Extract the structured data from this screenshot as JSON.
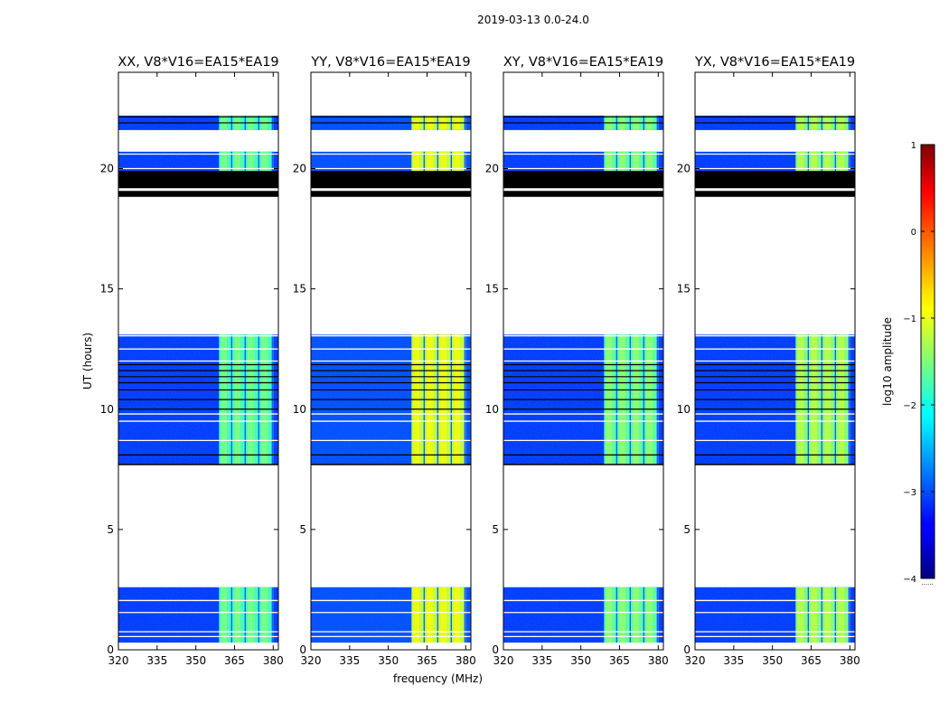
{
  "figure": {
    "suptitle": "2019-03-13 0.0-24.0"
  },
  "chart_data": [
    {
      "type": "heatmap",
      "title": "XX, V8*V16=EA15*EA19",
      "xlabel": "",
      "ylabel": "UT (hours)",
      "xlim": [
        320,
        382
      ],
      "ylim": [
        0,
        24
      ],
      "xticks": [
        320,
        335,
        350,
        365,
        380
      ],
      "yticks": [
        0,
        5,
        10,
        15,
        20
      ],
      "data_bands_ut": [
        [
          0.3,
          2.6
        ],
        [
          7.7,
          13.1
        ],
        [
          19.2,
          20.7
        ],
        [
          21.6,
          22.2
        ]
      ],
      "flagged_bands_ut": [
        [
          19.2,
          19.9
        ]
      ],
      "high_amplitude_freq_range_mhz": [
        359,
        380
      ],
      "background_log10_amplitude": -3.1,
      "high_log10_amplitude": -1.8
    },
    {
      "type": "heatmap",
      "title": "YY, V8*V16=EA15*EA19",
      "xlabel": "frequency (MHz)",
      "ylabel": "",
      "xlim": [
        320,
        382
      ],
      "ylim": [
        0,
        24
      ],
      "xticks": [
        320,
        335,
        350,
        365,
        380
      ],
      "yticks": [
        0,
        5,
        10,
        15,
        20
      ],
      "data_bands_ut": [
        [
          0.3,
          2.6
        ],
        [
          7.7,
          13.1
        ],
        [
          19.2,
          20.7
        ],
        [
          21.6,
          22.2
        ]
      ],
      "flagged_bands_ut": [
        [
          19.2,
          19.9
        ]
      ],
      "high_amplitude_freq_range_mhz": [
        359,
        380
      ],
      "background_log10_amplitude": -3.0,
      "high_log10_amplitude": -1.2
    },
    {
      "type": "heatmap",
      "title": "XY, V8*V16=EA15*EA19",
      "xlabel": "",
      "ylabel": "",
      "xlim": [
        320,
        382
      ],
      "ylim": [
        0,
        24
      ],
      "xticks": [
        320,
        335,
        350,
        365,
        380
      ],
      "yticks": [
        0,
        5,
        10,
        15,
        20
      ],
      "data_bands_ut": [
        [
          0.3,
          2.6
        ],
        [
          7.7,
          13.1
        ],
        [
          19.2,
          20.7
        ],
        [
          21.6,
          22.2
        ]
      ],
      "flagged_bands_ut": [
        [
          19.2,
          19.9
        ]
      ],
      "high_amplitude_freq_range_mhz": [
        359,
        380
      ],
      "background_log10_amplitude": -3.1,
      "high_log10_amplitude": -1.7
    },
    {
      "type": "heatmap",
      "title": "YX, V8*V16=EA15*EA19",
      "xlabel": "",
      "ylabel": "",
      "xlim": [
        320,
        382
      ],
      "ylim": [
        0,
        24
      ],
      "xticks": [
        320,
        335,
        350,
        365,
        380
      ],
      "yticks": [
        0,
        5,
        10,
        15,
        20
      ],
      "data_bands_ut": [
        [
          0.3,
          2.6
        ],
        [
          7.7,
          13.1
        ],
        [
          19.2,
          20.7
        ],
        [
          21.6,
          22.2
        ]
      ],
      "flagged_bands_ut": [
        [
          19.2,
          19.9
        ]
      ],
      "high_amplitude_freq_range_mhz": [
        359,
        380
      ],
      "background_log10_amplitude": -3.1,
      "high_log10_amplitude": -1.5
    }
  ],
  "colorbar": {
    "label": "log10 amplitude",
    "min": -4,
    "max": 1,
    "ticks": [
      -4,
      -3,
      -2,
      -1,
      0,
      1
    ],
    "tick_labels": [
      "−4",
      "−3",
      "−2",
      "−1",
      "0",
      "1"
    ],
    "colormap": "jet",
    "extra_text": "......"
  }
}
